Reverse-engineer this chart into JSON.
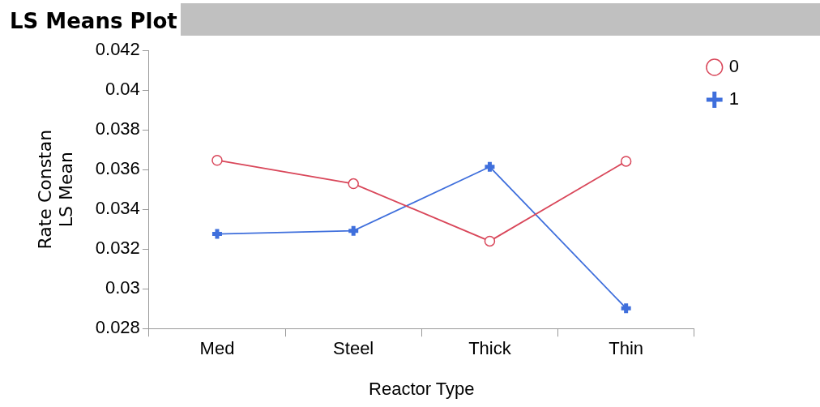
{
  "chart_data": {
    "type": "line",
    "title": "LS Means Plot",
    "xlabel": "Reactor Type",
    "ylabel": "Rate Constan\nLS Mean",
    "categories": [
      "Med",
      "Steel",
      "Thick",
      "Thin"
    ],
    "series": [
      {
        "name": "0",
        "color": "#d9475a",
        "marker": "circle",
        "values": [
          0.03647,
          0.03529,
          0.0324,
          0.03642
        ]
      },
      {
        "name": "1",
        "color": "#3f6fdc",
        "marker": "cross",
        "values": [
          0.03276,
          0.03292,
          0.03614,
          0.02902
        ]
      }
    ],
    "ylim": [
      0.028,
      0.042
    ],
    "yticks": [
      0.028,
      0.03,
      0.032,
      0.034,
      0.036,
      0.038,
      0.04,
      0.042
    ],
    "grid": false,
    "legend": "top right"
  }
}
